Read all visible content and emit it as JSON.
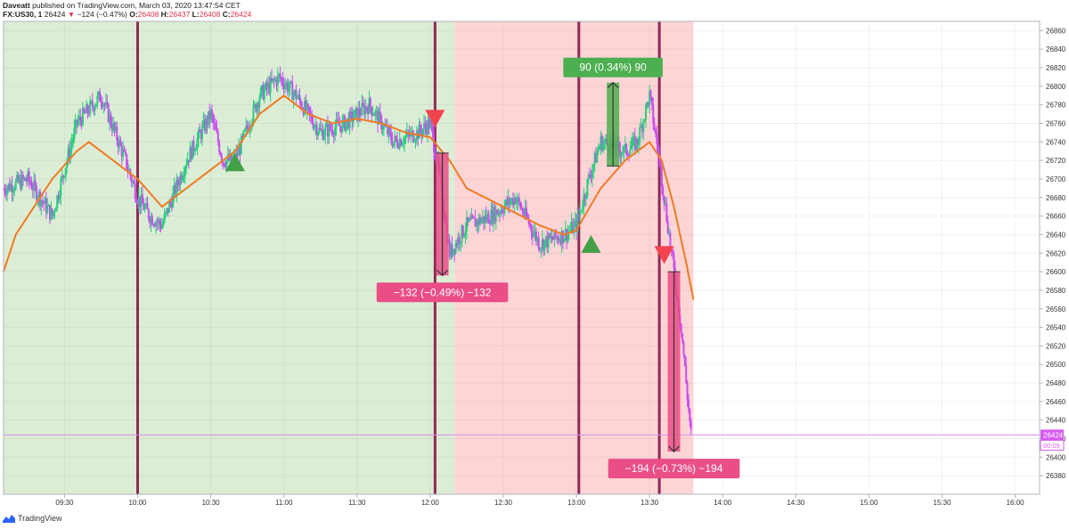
{
  "header": {
    "author": "Daveatt",
    "published": "published on TradingView.com, March 03, 2020 13:47:54 CET",
    "symbol": "FX:US30, 1",
    "last": "26424",
    "change": "−124 (−0.47%)",
    "o_label": "O:",
    "o": "26408",
    "h_label": "H:",
    "h": "26437",
    "l_label": "L:",
    "l": "26408",
    "c_label": "C:",
    "c": "26424"
  },
  "footer": {
    "brand": "TradingView"
  },
  "colors": {
    "up": "#26d07c",
    "down": "#c84ef0",
    "ma": "#f07b22",
    "vline": "#8b2a56",
    "zone_green": "#dcedd6",
    "zone_red": "#fdd5d6",
    "signal_up": "#43a047",
    "signal_down": "#f2434f",
    "loss_box": "#ea4e86",
    "win_box": "#4caf50",
    "price_line": "#d88cf0"
  },
  "chart_data": {
    "type": "candlestick",
    "symbol": "FX:US30",
    "interval": "1",
    "y_range": [
      26360,
      26870
    ],
    "y_ticks": [
      26380,
      26400,
      26420,
      26440,
      26460,
      26480,
      26500,
      26520,
      26540,
      26560,
      26580,
      26600,
      26620,
      26640,
      26660,
      26680,
      26700,
      26720,
      26740,
      26760,
      26780,
      26800,
      26820,
      26840,
      26860
    ],
    "x_range": [
      "09:05",
      "16:10"
    ],
    "x_ticks": [
      "09:30",
      "10:00",
      "10:30",
      "11:00",
      "11:30",
      "12:00",
      "12:30",
      "13:00",
      "13:30",
      "14:00",
      "14:30",
      "15:00",
      "15:30",
      "16:00"
    ],
    "current_price": "26424",
    "countdown": "00:09",
    "price_series": [
      [
        "09:05",
        26690
      ],
      [
        "09:15",
        26700
      ],
      [
        "09:25",
        26660
      ],
      [
        "09:35",
        26760
      ],
      [
        "09:45",
        26790
      ],
      [
        "09:55",
        26720
      ],
      [
        "10:00",
        26680
      ],
      [
        "10:05",
        26660
      ],
      [
        "10:10",
        26650
      ],
      [
        "10:20",
        26720
      ],
      [
        "10:30",
        26770
      ],
      [
        "10:35",
        26720
      ],
      [
        "10:40",
        26720
      ],
      [
        "10:50",
        26790
      ],
      [
        "10:58",
        26810
      ],
      [
        "11:05",
        26790
      ],
      [
        "11:15",
        26750
      ],
      [
        "11:25",
        26760
      ],
      [
        "11:35",
        26780
      ],
      [
        "11:45",
        26740
      ],
      [
        "11:55",
        26750
      ],
      [
        "12:00",
        26760
      ],
      [
        "12:04",
        26700
      ],
      [
        "12:08",
        26620
      ],
      [
        "12:15",
        26650
      ],
      [
        "12:25",
        26660
      ],
      [
        "12:35",
        26680
      ],
      [
        "12:45",
        26630
      ],
      [
        "12:55",
        26640
      ],
      [
        "13:00",
        26650
      ],
      [
        "13:05",
        26700
      ],
      [
        "13:10",
        26740
      ],
      [
        "13:20",
        26730
      ],
      [
        "13:25",
        26740
      ],
      [
        "13:30",
        26790
      ],
      [
        "13:34",
        26720
      ],
      [
        "13:38",
        26640
      ],
      [
        "13:40",
        26600
      ],
      [
        "13:43",
        26540
      ],
      [
        "13:45",
        26480
      ],
      [
        "13:47",
        26424
      ]
    ],
    "moving_average": [
      [
        "09:05",
        26600
      ],
      [
        "09:10",
        26640
      ],
      [
        "09:15",
        26660
      ],
      [
        "09:25",
        26700
      ],
      [
        "09:35",
        26730
      ],
      [
        "09:40",
        26740
      ],
      [
        "09:50",
        26720
      ],
      [
        "10:00",
        26700
      ],
      [
        "10:10",
        26670
      ],
      [
        "10:20",
        26690
      ],
      [
        "10:30",
        26710
      ],
      [
        "10:40",
        26730
      ],
      [
        "10:50",
        26770
      ],
      [
        "11:00",
        26790
      ],
      [
        "11:10",
        26770
      ],
      [
        "11:20",
        26760
      ],
      [
        "11:30",
        26765
      ],
      [
        "11:40",
        26760
      ],
      [
        "11:50",
        26750
      ],
      [
        "12:00",
        26745
      ],
      [
        "12:08",
        26720
      ],
      [
        "12:15",
        26690
      ],
      [
        "12:30",
        26670
      ],
      [
        "12:45",
        26650
      ],
      [
        "12:55",
        26640
      ],
      [
        "13:00",
        26645
      ],
      [
        "13:10",
        26690
      ],
      [
        "13:20",
        26720
      ],
      [
        "13:30",
        26740
      ],
      [
        "13:35",
        26720
      ],
      [
        "13:40",
        26670
      ],
      [
        "13:45",
        26610
      ],
      [
        "13:48",
        26570
      ]
    ],
    "session_zones": [
      {
        "start": "09:05",
        "end": "12:10",
        "color": "green"
      },
      {
        "start": "12:10",
        "end": "13:48",
        "color": "red"
      }
    ],
    "vertical_lines": [
      "10:00",
      "12:02",
      "13:01",
      "13:34"
    ],
    "signals": [
      {
        "type": "buy",
        "time": "10:40",
        "price": 26718
      },
      {
        "type": "sell",
        "time": "12:02",
        "price": 26765
      },
      {
        "type": "buy",
        "time": "13:06",
        "price": 26630
      },
      {
        "type": "sell",
        "time": "13:36",
        "price": 26618
      }
    ],
    "trades": [
      {
        "time": "12:05",
        "from": 26728,
        "to": 26596,
        "label": "−132 (−0.49%) −132",
        "result": "loss"
      },
      {
        "time": "13:15",
        "from": 26714,
        "to": 26804,
        "label": "90 (0.34%) 90",
        "result": "win"
      },
      {
        "time": "13:40",
        "from": 26600,
        "to": 26406,
        "label": "−194 (−0.73%) −194",
        "result": "loss"
      }
    ]
  }
}
